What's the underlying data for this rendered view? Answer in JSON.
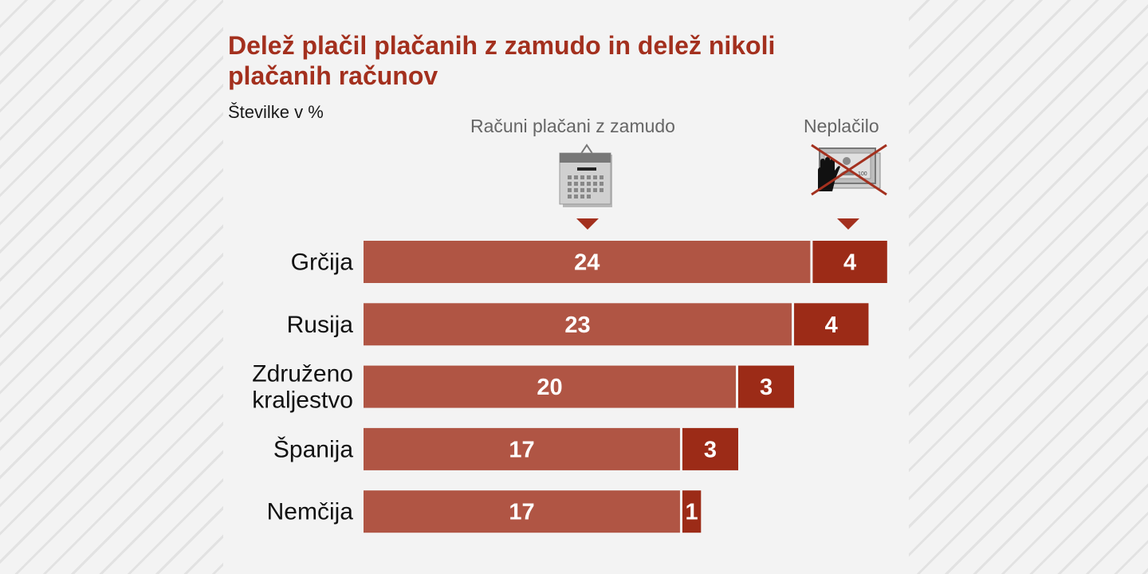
{
  "title": "Delež plačil plačanih z zamudo in delež nikoli plačanih računov",
  "subtitle": "Številke v %",
  "colors": {
    "late": "#b05544",
    "unpaid": "#9c2b17",
    "title": "#a3301e"
  },
  "chart_data": {
    "type": "bar",
    "orientation": "horizontal",
    "stacked": true,
    "categories": [
      [
        "Grčija"
      ],
      [
        "Rusija"
      ],
      [
        "Združeno",
        "kraljestvo"
      ],
      [
        "Španija"
      ],
      [
        "Nemčija"
      ]
    ],
    "series": [
      {
        "name": "Računi plačani z zamudo",
        "icon": "calendar-icon",
        "values": [
          24,
          23,
          20,
          17,
          17
        ]
      },
      {
        "name": "Neplačilo",
        "icon": "crossed-cash-icon",
        "values": [
          4,
          4,
          3,
          3,
          1
        ]
      }
    ],
    "xlim": [
      0,
      28
    ]
  }
}
